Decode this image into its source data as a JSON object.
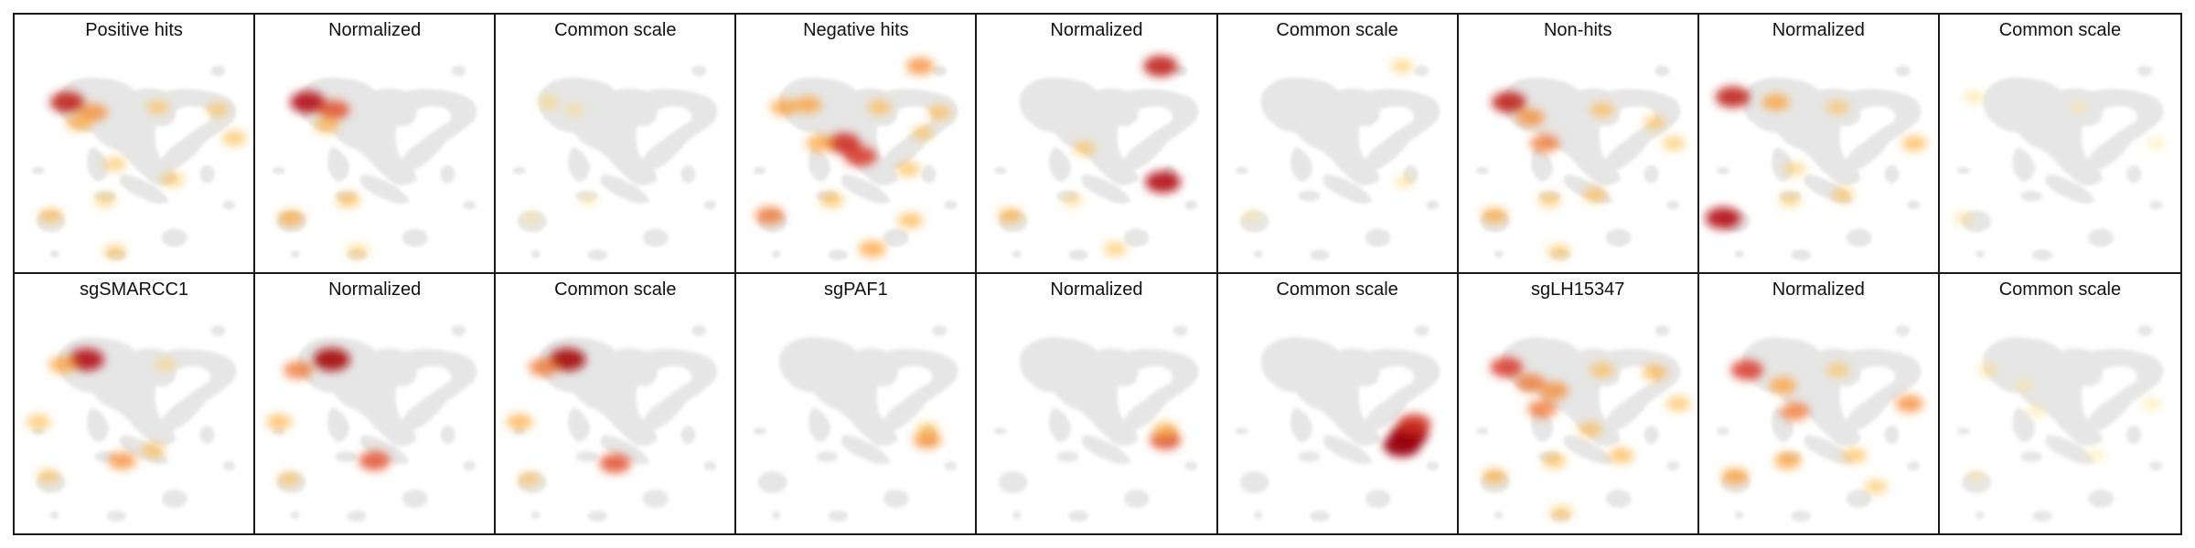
{
  "chart_data": {
    "type": "heatmap",
    "description_note": "",
    "panels": [
      {
        "title": "Positive hits",
        "scale": "raw",
        "hotspots": [
          {
            "x": 0.22,
            "y": 0.34,
            "v": 0.85
          },
          {
            "x": 0.33,
            "y": 0.38,
            "v": 0.55
          },
          {
            "x": 0.27,
            "y": 0.42,
            "v": 0.45
          },
          {
            "x": 0.6,
            "y": 0.36,
            "v": 0.3
          },
          {
            "x": 0.85,
            "y": 0.37,
            "v": 0.3
          },
          {
            "x": 0.92,
            "y": 0.48,
            "v": 0.35
          },
          {
            "x": 0.42,
            "y": 0.58,
            "v": 0.3
          },
          {
            "x": 0.15,
            "y": 0.78,
            "v": 0.35
          },
          {
            "x": 0.38,
            "y": 0.72,
            "v": 0.25
          },
          {
            "x": 0.66,
            "y": 0.64,
            "v": 0.3
          },
          {
            "x": 0.42,
            "y": 0.92,
            "v": 0.3
          }
        ]
      },
      {
        "title": "Normalized",
        "scale": "normalized",
        "hotspots": [
          {
            "x": 0.22,
            "y": 0.34,
            "v": 0.9
          },
          {
            "x": 0.33,
            "y": 0.37,
            "v": 0.7
          },
          {
            "x": 0.3,
            "y": 0.43,
            "v": 0.4
          },
          {
            "x": 0.15,
            "y": 0.79,
            "v": 0.45
          },
          {
            "x": 0.39,
            "y": 0.72,
            "v": 0.35
          },
          {
            "x": 0.43,
            "y": 0.92,
            "v": 0.25
          }
        ]
      },
      {
        "title": "Common scale",
        "scale": "common",
        "hotspots": [
          {
            "x": 0.22,
            "y": 0.34,
            "v": 0.2
          },
          {
            "x": 0.33,
            "y": 0.37,
            "v": 0.15
          },
          {
            "x": 0.15,
            "y": 0.79,
            "v": 0.12
          },
          {
            "x": 0.39,
            "y": 0.72,
            "v": 0.1
          }
        ]
      },
      {
        "title": "Negative hits",
        "scale": "raw",
        "hotspots": [
          {
            "x": 0.2,
            "y": 0.36,
            "v": 0.5
          },
          {
            "x": 0.3,
            "y": 0.35,
            "v": 0.5
          },
          {
            "x": 0.45,
            "y": 0.5,
            "v": 0.8
          },
          {
            "x": 0.52,
            "y": 0.55,
            "v": 0.75
          },
          {
            "x": 0.35,
            "y": 0.5,
            "v": 0.5
          },
          {
            "x": 0.6,
            "y": 0.36,
            "v": 0.35
          },
          {
            "x": 0.85,
            "y": 0.38,
            "v": 0.35
          },
          {
            "x": 0.78,
            "y": 0.46,
            "v": 0.3
          },
          {
            "x": 0.14,
            "y": 0.78,
            "v": 0.6
          },
          {
            "x": 0.4,
            "y": 0.72,
            "v": 0.35
          },
          {
            "x": 0.57,
            "y": 0.91,
            "v": 0.5
          },
          {
            "x": 0.73,
            "y": 0.8,
            "v": 0.4
          },
          {
            "x": 0.72,
            "y": 0.6,
            "v": 0.35
          },
          {
            "x": 0.77,
            "y": 0.2,
            "v": 0.55
          }
        ]
      },
      {
        "title": "Normalized",
        "scale": "normalized",
        "hotspots": [
          {
            "x": 0.77,
            "y": 0.2,
            "v": 0.85
          },
          {
            "x": 0.78,
            "y": 0.65,
            "v": 0.9
          },
          {
            "x": 0.45,
            "y": 0.52,
            "v": 0.3
          },
          {
            "x": 0.14,
            "y": 0.78,
            "v": 0.4
          },
          {
            "x": 0.58,
            "y": 0.91,
            "v": 0.3
          },
          {
            "x": 0.4,
            "y": 0.72,
            "v": 0.2
          }
        ]
      },
      {
        "title": "Common scale",
        "scale": "common",
        "hotspots": [
          {
            "x": 0.77,
            "y": 0.2,
            "v": 0.25
          },
          {
            "x": 0.78,
            "y": 0.65,
            "v": 0.15
          },
          {
            "x": 0.14,
            "y": 0.78,
            "v": 0.1
          }
        ]
      },
      {
        "title": "Non-hits",
        "scale": "raw",
        "hotspots": [
          {
            "x": 0.21,
            "y": 0.34,
            "v": 0.85
          },
          {
            "x": 0.3,
            "y": 0.4,
            "v": 0.55
          },
          {
            "x": 0.36,
            "y": 0.5,
            "v": 0.6
          },
          {
            "x": 0.6,
            "y": 0.37,
            "v": 0.35
          },
          {
            "x": 0.82,
            "y": 0.42,
            "v": 0.3
          },
          {
            "x": 0.9,
            "y": 0.5,
            "v": 0.3
          },
          {
            "x": 0.15,
            "y": 0.78,
            "v": 0.45
          },
          {
            "x": 0.38,
            "y": 0.72,
            "v": 0.3
          },
          {
            "x": 0.57,
            "y": 0.7,
            "v": 0.35
          },
          {
            "x": 0.42,
            "y": 0.92,
            "v": 0.3
          }
        ]
      },
      {
        "title": "Normalized",
        "scale": "normalized",
        "hotspots": [
          {
            "x": 0.14,
            "y": 0.32,
            "v": 0.85
          },
          {
            "x": 0.32,
            "y": 0.34,
            "v": 0.5
          },
          {
            "x": 0.1,
            "y": 0.79,
            "v": 0.9
          },
          {
            "x": 0.58,
            "y": 0.36,
            "v": 0.3
          },
          {
            "x": 0.9,
            "y": 0.5,
            "v": 0.4
          },
          {
            "x": 0.4,
            "y": 0.6,
            "v": 0.25
          },
          {
            "x": 0.6,
            "y": 0.7,
            "v": 0.3
          },
          {
            "x": 0.38,
            "y": 0.72,
            "v": 0.25
          }
        ]
      },
      {
        "title": "Common scale",
        "scale": "common",
        "hotspots": [
          {
            "x": 0.14,
            "y": 0.32,
            "v": 0.15
          },
          {
            "x": 0.1,
            "y": 0.79,
            "v": 0.15
          },
          {
            "x": 0.58,
            "y": 0.36,
            "v": 0.1
          },
          {
            "x": 0.9,
            "y": 0.5,
            "v": 0.1
          }
        ]
      },
      {
        "title": "sgSMARCC1",
        "scale": "raw",
        "hotspots": [
          {
            "x": 0.3,
            "y": 0.33,
            "v": 0.9
          },
          {
            "x": 0.2,
            "y": 0.35,
            "v": 0.5
          },
          {
            "x": 0.45,
            "y": 0.72,
            "v": 0.55
          },
          {
            "x": 0.58,
            "y": 0.68,
            "v": 0.35
          },
          {
            "x": 0.1,
            "y": 0.57,
            "v": 0.35
          },
          {
            "x": 0.14,
            "y": 0.78,
            "v": 0.3
          },
          {
            "x": 0.63,
            "y": 0.35,
            "v": 0.2
          }
        ]
      },
      {
        "title": "Normalized",
        "scale": "normalized",
        "hotspots": [
          {
            "x": 0.32,
            "y": 0.33,
            "v": 0.95
          },
          {
            "x": 0.18,
            "y": 0.37,
            "v": 0.6
          },
          {
            "x": 0.5,
            "y": 0.72,
            "v": 0.7
          },
          {
            "x": 0.1,
            "y": 0.57,
            "v": 0.4
          },
          {
            "x": 0.14,
            "y": 0.79,
            "v": 0.3
          }
        ]
      },
      {
        "title": "Common scale",
        "scale": "common",
        "hotspots": [
          {
            "x": 0.3,
            "y": 0.33,
            "v": 0.95
          },
          {
            "x": 0.2,
            "y": 0.36,
            "v": 0.6
          },
          {
            "x": 0.5,
            "y": 0.73,
            "v": 0.7
          },
          {
            "x": 0.1,
            "y": 0.57,
            "v": 0.45
          },
          {
            "x": 0.14,
            "y": 0.79,
            "v": 0.3
          }
        ]
      },
      {
        "title": "sgPAF1",
        "scale": "raw",
        "hotspots": [
          {
            "x": 0.8,
            "y": 0.64,
            "v": 0.55
          },
          {
            "x": 0.8,
            "y": 0.6,
            "v": 0.3
          }
        ]
      },
      {
        "title": "Normalized",
        "scale": "normalized",
        "hotspots": [
          {
            "x": 0.79,
            "y": 0.64,
            "v": 0.7
          },
          {
            "x": 0.79,
            "y": 0.6,
            "v": 0.4
          }
        ]
      },
      {
        "title": "Common scale",
        "scale": "common",
        "hotspots": [
          {
            "x": 0.8,
            "y": 0.62,
            "v": 1.0
          },
          {
            "x": 0.77,
            "y": 0.66,
            "v": 1.0
          },
          {
            "x": 0.82,
            "y": 0.58,
            "v": 0.8
          }
        ]
      },
      {
        "title": "sgLH15347",
        "scale": "raw",
        "hotspots": [
          {
            "x": 0.2,
            "y": 0.36,
            "v": 0.75
          },
          {
            "x": 0.3,
            "y": 0.42,
            "v": 0.6
          },
          {
            "x": 0.4,
            "y": 0.45,
            "v": 0.55
          },
          {
            "x": 0.35,
            "y": 0.52,
            "v": 0.6
          },
          {
            "x": 0.6,
            "y": 0.37,
            "v": 0.35
          },
          {
            "x": 0.82,
            "y": 0.38,
            "v": 0.4
          },
          {
            "x": 0.92,
            "y": 0.5,
            "v": 0.35
          },
          {
            "x": 0.55,
            "y": 0.6,
            "v": 0.35
          },
          {
            "x": 0.15,
            "y": 0.78,
            "v": 0.4
          },
          {
            "x": 0.4,
            "y": 0.72,
            "v": 0.35
          },
          {
            "x": 0.68,
            "y": 0.7,
            "v": 0.4
          },
          {
            "x": 0.43,
            "y": 0.92,
            "v": 0.3
          }
        ]
      },
      {
        "title": "Normalized",
        "scale": "normalized",
        "hotspots": [
          {
            "x": 0.2,
            "y": 0.37,
            "v": 0.75
          },
          {
            "x": 0.35,
            "y": 0.43,
            "v": 0.5
          },
          {
            "x": 0.4,
            "y": 0.53,
            "v": 0.6
          },
          {
            "x": 0.58,
            "y": 0.37,
            "v": 0.3
          },
          {
            "x": 0.88,
            "y": 0.5,
            "v": 0.55
          },
          {
            "x": 0.15,
            "y": 0.78,
            "v": 0.5
          },
          {
            "x": 0.37,
            "y": 0.72,
            "v": 0.5
          },
          {
            "x": 0.65,
            "y": 0.7,
            "v": 0.35
          },
          {
            "x": 0.74,
            "y": 0.82,
            "v": 0.3
          }
        ]
      },
      {
        "title": "Common scale",
        "scale": "common",
        "hotspots": [
          {
            "x": 0.2,
            "y": 0.37,
            "v": 0.15
          },
          {
            "x": 0.35,
            "y": 0.43,
            "v": 0.12
          },
          {
            "x": 0.4,
            "y": 0.53,
            "v": 0.12
          },
          {
            "x": 0.88,
            "y": 0.5,
            "v": 0.12
          },
          {
            "x": 0.15,
            "y": 0.78,
            "v": 0.1
          },
          {
            "x": 0.65,
            "y": 0.7,
            "v": 0.1
          }
        ]
      }
    ],
    "colormap": [
      "#fff7bc",
      "#fec44f",
      "#fe9929",
      "#d7301f",
      "#99000d"
    ],
    "background_color": "#e6e6e6"
  }
}
